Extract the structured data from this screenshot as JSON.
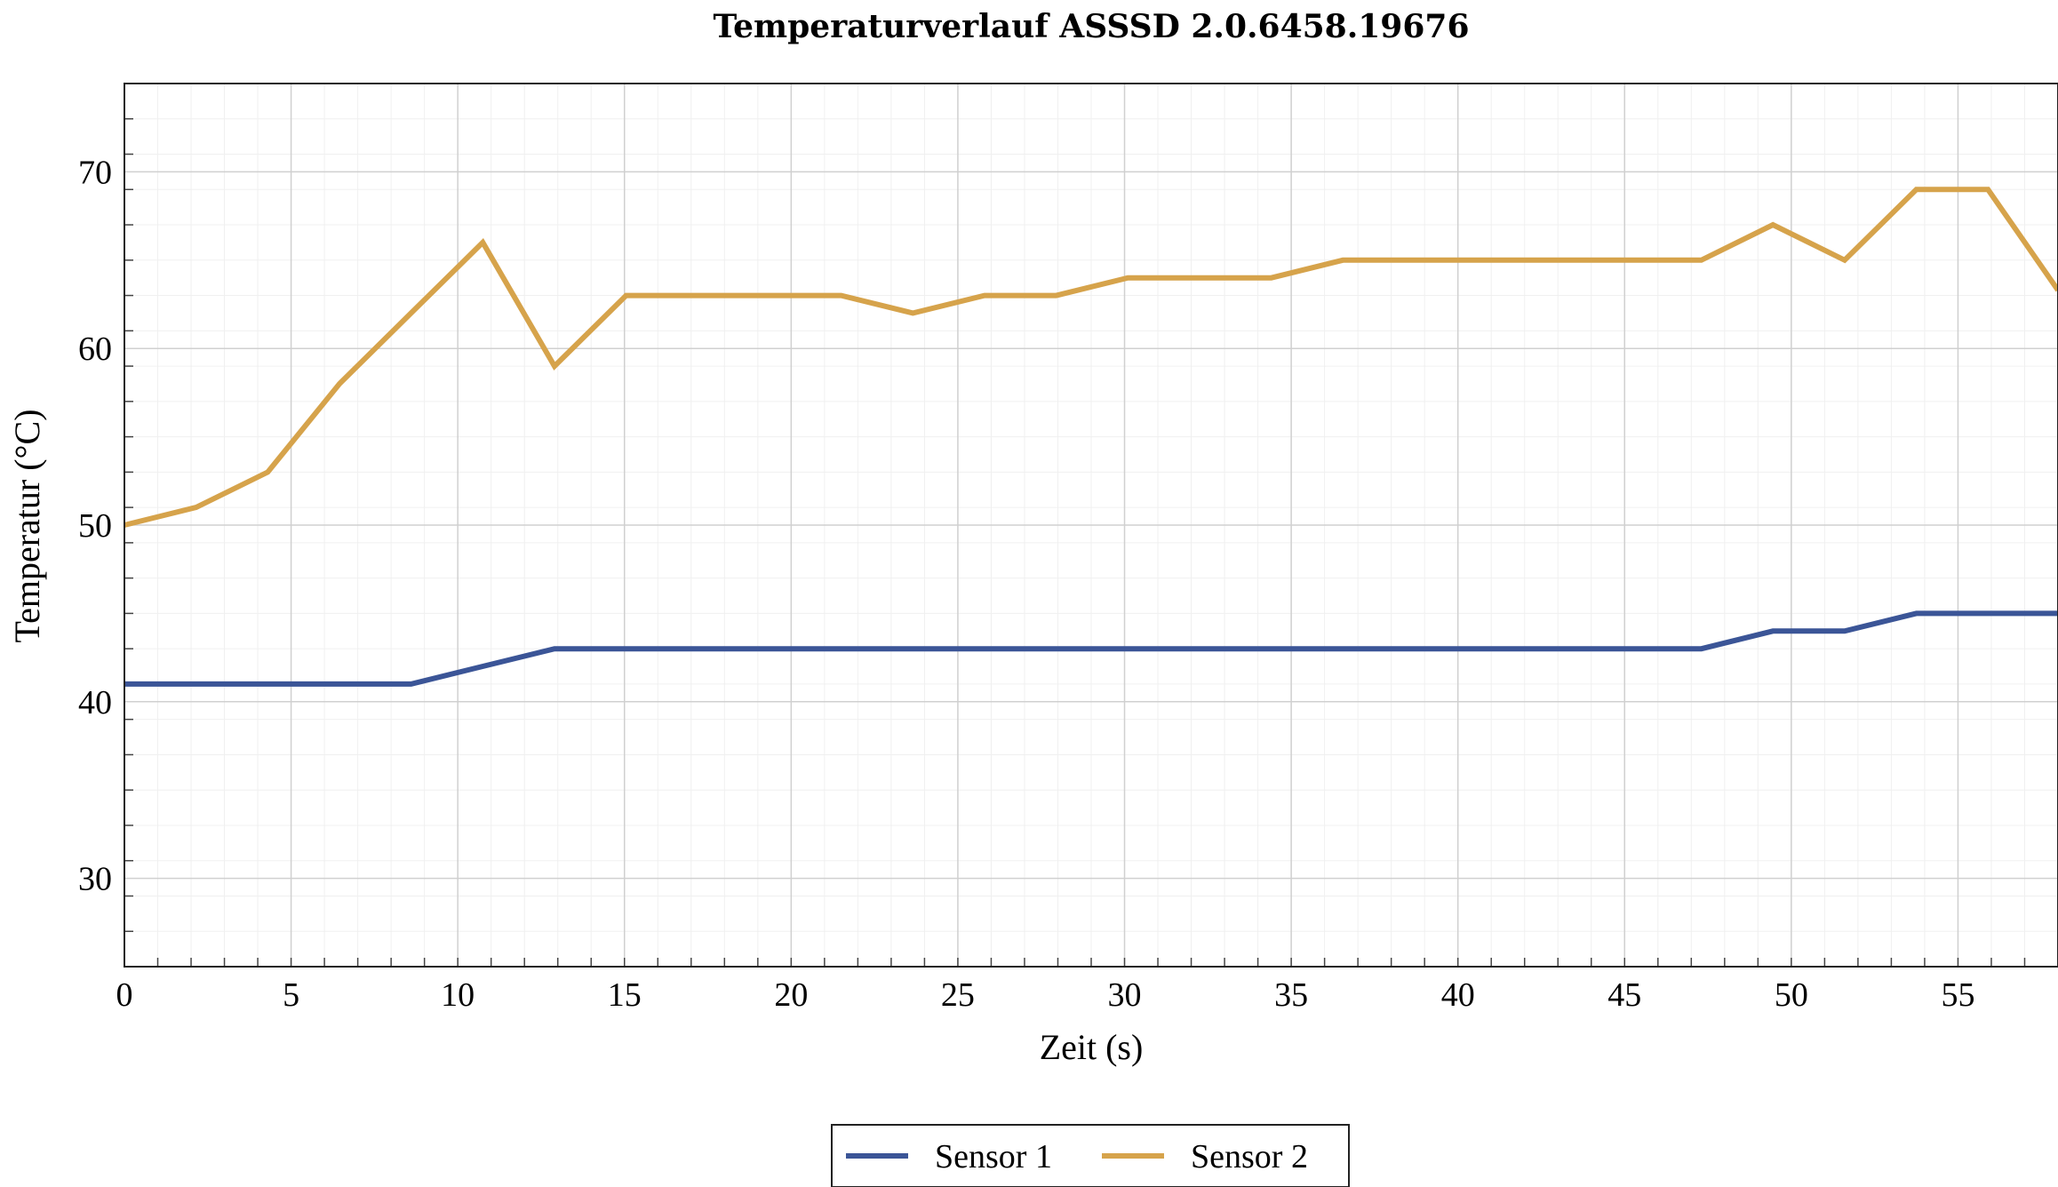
{
  "chart_data": {
    "type": "line",
    "title": "Temperaturverlauf ASSSD 2.0.6458.19676",
    "xlabel": "Zeit (s)",
    "ylabel": "Temperatur (°C)",
    "xlim": [
      0,
      58
    ],
    "ylim": [
      25,
      75
    ],
    "x_ticks": [
      0,
      5,
      10,
      15,
      20,
      25,
      30,
      35,
      40,
      45,
      50,
      55
    ],
    "y_ticks": [
      30,
      40,
      50,
      60,
      70
    ],
    "x_tick_labels": [
      "0",
      "5",
      "10",
      "15",
      "20",
      "25",
      "30",
      "35",
      "40",
      "45",
      "50",
      "55"
    ],
    "y_tick_labels": [
      "30",
      "40",
      "50",
      "60",
      "70"
    ],
    "grid": true,
    "minor_grid": true,
    "legend_position": "bottom-center",
    "series": [
      {
        "name": "Sensor 1",
        "color": "#3b5597",
        "points": [
          [
            0,
            41
          ],
          [
            2.15,
            41
          ],
          [
            4.3,
            41
          ],
          [
            6.45,
            41
          ],
          [
            8.6,
            41
          ],
          [
            10.75,
            42
          ],
          [
            12.9,
            43
          ],
          [
            15.05,
            43
          ],
          [
            17.2,
            43
          ],
          [
            19.35,
            43
          ],
          [
            21.5,
            43
          ],
          [
            23.65,
            43
          ],
          [
            25.8,
            43
          ],
          [
            27.95,
            43
          ],
          [
            30.1,
            43
          ],
          [
            32.25,
            43
          ],
          [
            34.4,
            43
          ],
          [
            36.55,
            43
          ],
          [
            38.7,
            43
          ],
          [
            40.85,
            43
          ],
          [
            43.0,
            43
          ],
          [
            45.15,
            43
          ],
          [
            47.3,
            43
          ],
          [
            49.45,
            44
          ],
          [
            51.6,
            44
          ],
          [
            53.75,
            45
          ],
          [
            55.9,
            45
          ],
          [
            58,
            45
          ]
        ]
      },
      {
        "name": "Sensor 2",
        "color": "#d6a34b",
        "points": [
          [
            0,
            50
          ],
          [
            2.15,
            51
          ],
          [
            4.3,
            53
          ],
          [
            6.45,
            58
          ],
          [
            8.6,
            62
          ],
          [
            10.75,
            66
          ],
          [
            12.9,
            59
          ],
          [
            15.05,
            63
          ],
          [
            17.2,
            63
          ],
          [
            19.35,
            63
          ],
          [
            21.5,
            63
          ],
          [
            23.65,
            62
          ],
          [
            25.8,
            63
          ],
          [
            27.95,
            63
          ],
          [
            30.1,
            64
          ],
          [
            32.25,
            64
          ],
          [
            34.4,
            64
          ],
          [
            36.55,
            65
          ],
          [
            38.7,
            65
          ],
          [
            40.85,
            65
          ],
          [
            43.0,
            65
          ],
          [
            45.15,
            65
          ],
          [
            47.3,
            65
          ],
          [
            49.45,
            67
          ],
          [
            51.6,
            65
          ],
          [
            53.75,
            69
          ],
          [
            55.9,
            69
          ],
          [
            58,
            63.3
          ]
        ]
      }
    ]
  }
}
